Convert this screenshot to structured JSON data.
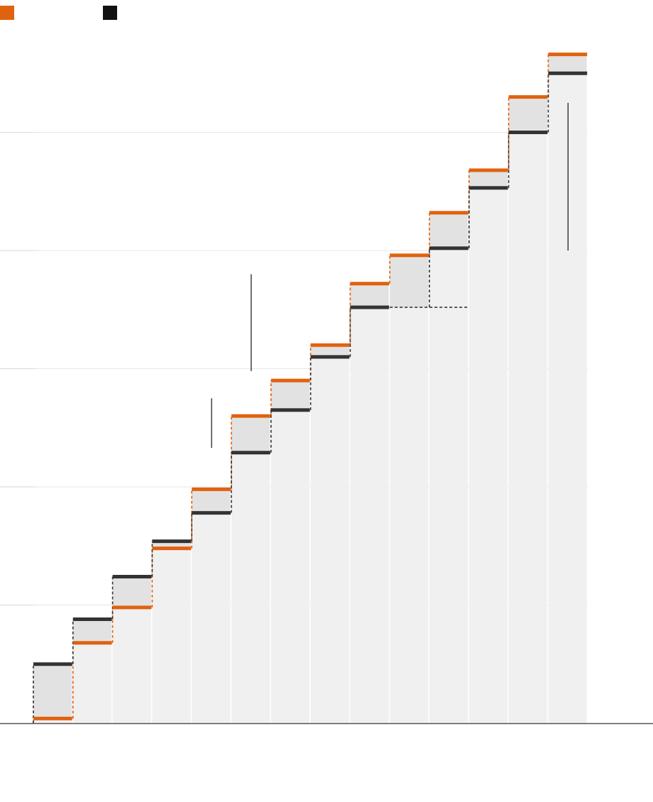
{
  "colors": {
    "orange": "#e0620f",
    "dark": "#333333",
    "legend_dark": "#111111",
    "column_fill": "#f0f0f0",
    "gap_fill": "#e2e2e2",
    "grid": "#dddddd",
    "axis": "#555555",
    "annotation": "#222222"
  },
  "legend": [
    {
      "color": "#e0620f",
      "label": ""
    },
    {
      "color": "#111111",
      "label": ""
    }
  ],
  "chart_data": {
    "type": "bar",
    "ylim": [
      0,
      5.7
    ],
    "gridlines": [
      1,
      2,
      3,
      4,
      5
    ],
    "series": [
      {
        "key": "orange",
        "values": [
          0.04,
          0.68,
          0.98,
          1.48,
          1.98,
          2.6,
          2.9,
          3.2,
          3.72,
          3.96,
          4.32,
          4.68,
          5.3,
          5.66
        ]
      },
      {
        "key": "dark",
        "values": [
          0.5,
          0.88,
          1.24,
          1.54,
          1.78,
          2.29,
          2.65,
          3.1,
          3.52,
          3.52,
          4.02,
          4.53,
          5.0,
          5.5
        ]
      }
    ],
    "annotations": [
      {
        "column": 4.5,
        "y_top": 2.75,
        "y_bottom": 2.33
      },
      {
        "column": 5.5,
        "y_top": 3.8,
        "y_bottom": 2.98
      },
      {
        "column": 13.5,
        "y_top": 5.25,
        "y_bottom": 4.0
      }
    ]
  }
}
